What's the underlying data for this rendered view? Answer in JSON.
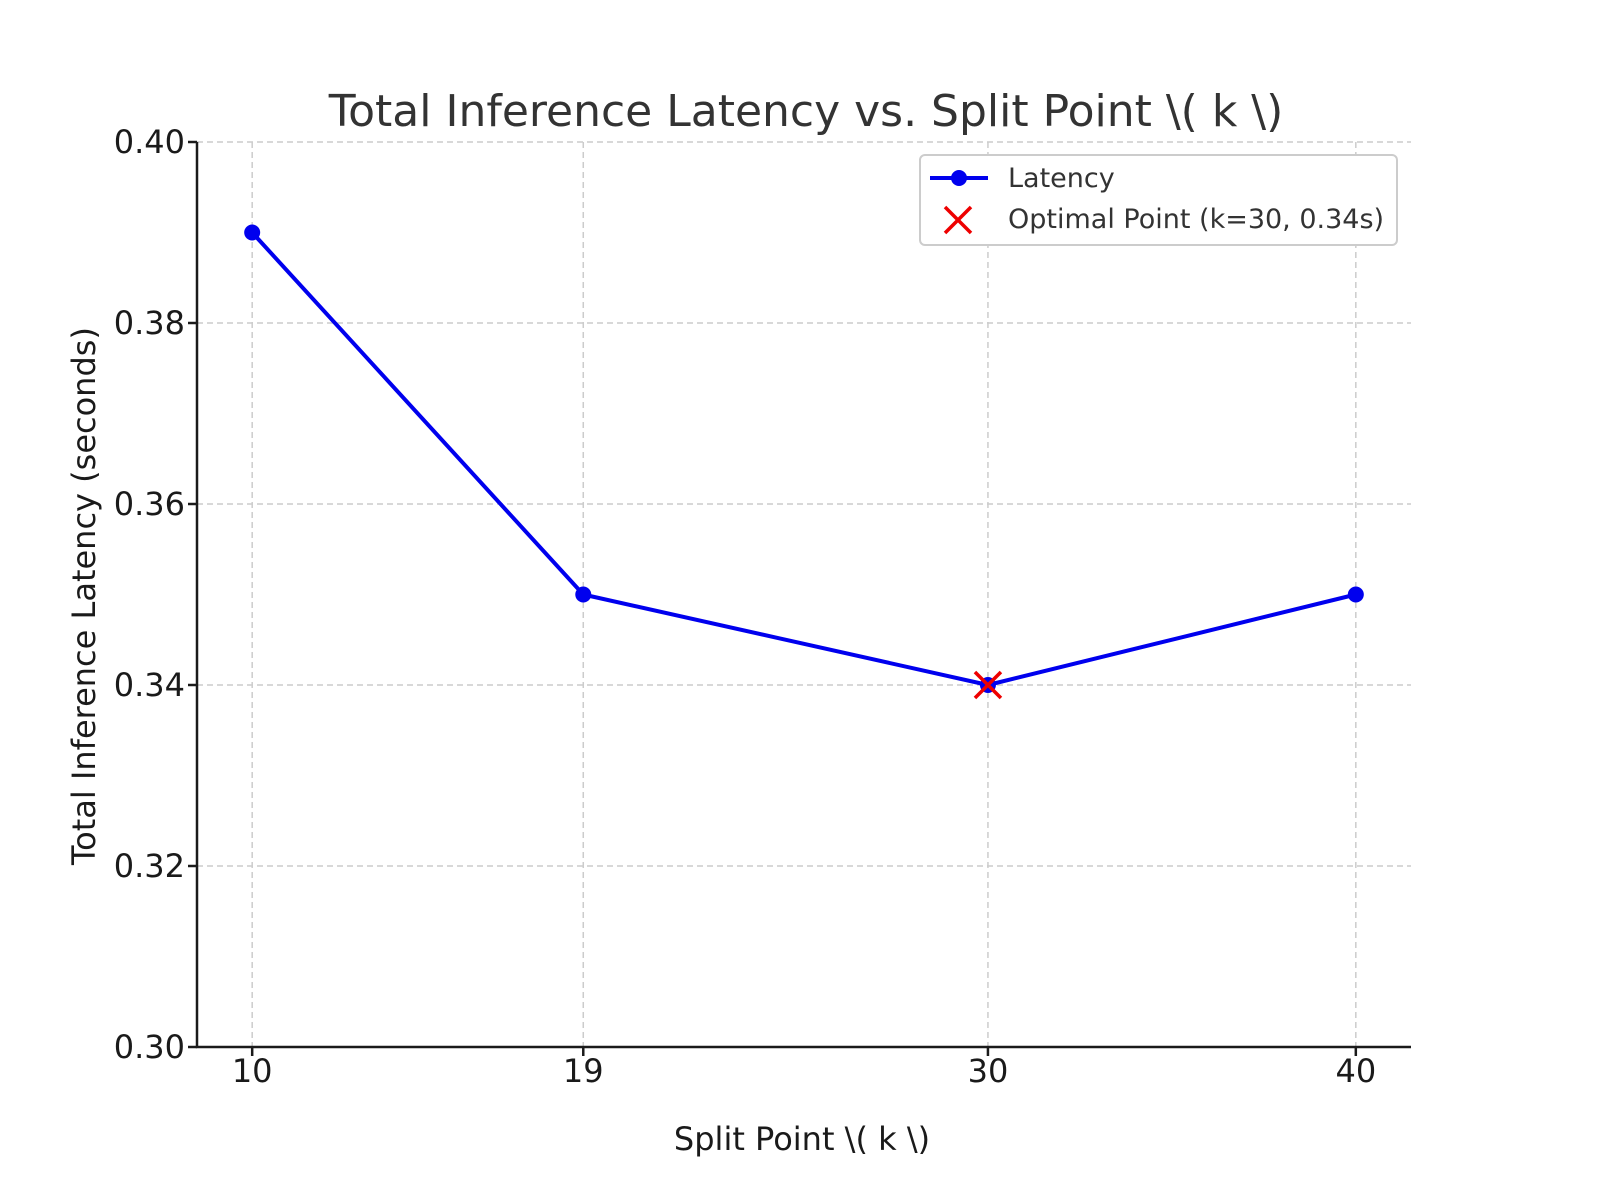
{
  "chart_data": {
    "type": "line",
    "title": "Total Inference Latency vs. Split Point \\( k \\)",
    "xlabel": "Split Point \\( k \\)",
    "ylabel": "Total Inference Latency (seconds)",
    "x": [
      10,
      19,
      30,
      40
    ],
    "x_tick_labels": [
      "10",
      "19",
      "30",
      "40"
    ],
    "xlim": [
      8.5,
      41.5
    ],
    "ylim": [
      0.3,
      0.4
    ],
    "y_ticks": [
      0.3,
      0.32,
      0.34,
      0.36,
      0.38,
      0.4
    ],
    "y_tick_labels": [
      "0.30",
      "0.32",
      "0.34",
      "0.36",
      "0.38",
      "0.40"
    ],
    "grid": true,
    "legend_position": "top-right",
    "series": [
      {
        "name": "Latency",
        "values": [
          0.39,
          0.35,
          0.34,
          0.35
        ],
        "color": "#0000ee",
        "marker": "circle"
      }
    ],
    "highlight": {
      "name": "Optimal Point (k=30, 0.34s)",
      "x": 30,
      "y": 0.34,
      "color": "#ee0000",
      "marker": "x"
    }
  }
}
